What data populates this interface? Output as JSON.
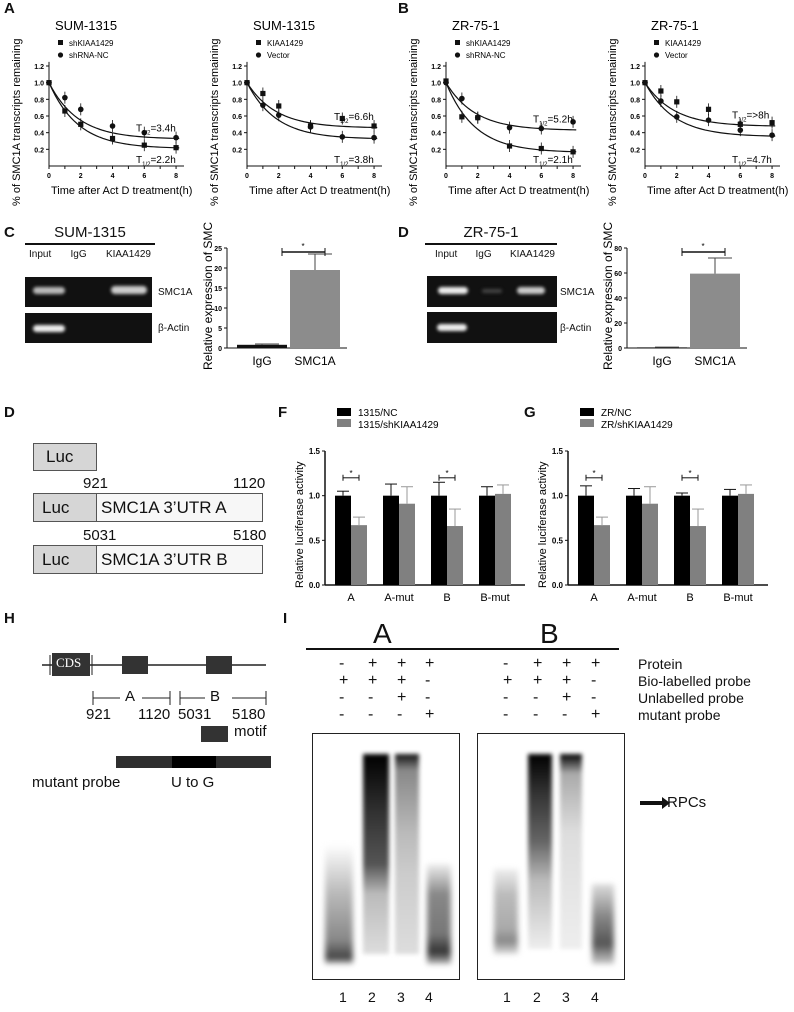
{
  "panels": {
    "A": "A",
    "B": "B",
    "C": "C",
    "D_rip": "D",
    "D_construct": "D",
    "F": "F",
    "G": "G",
    "H": "H",
    "I": "I"
  },
  "decay_common": {
    "ylabel": "% of SMC1A transcripts remaining",
    "xlabel": "Time after Act D treatment(h)",
    "xticks": [
      "0",
      "2",
      "4",
      "6",
      "8"
    ],
    "yticks": [
      "0.2",
      "0.4",
      "0.6",
      "0.8",
      "1.0",
      "1.2"
    ]
  },
  "rip": {
    "sum": {
      "title": "SUM-1315",
      "lanes": [
        "Input",
        "IgG",
        "KIAA1429"
      ],
      "rows": [
        "SMC1A",
        "β-Actin"
      ]
    },
    "zr": {
      "title": "ZR-75-1",
      "lanes": [
        "Input",
        "IgG",
        "KIAA1429"
      ],
      "rows": [
        "SMC1A",
        "β-Actin"
      ]
    },
    "bar_ylabel": "Relative expression of SMC1A",
    "sig": "*"
  },
  "construct": {
    "luc": "Luc",
    "a_start": "921",
    "a_end": "1120",
    "a_label": "SMC1A 3’UTR A",
    "b_start": "5031",
    "b_end": "5180",
    "b_label": "SMC1A 3’UTR B"
  },
  "luc_common": {
    "ylabel": "Relative luciferase activity",
    "yticks": [
      "0.0",
      "0.5",
      "1.0",
      "1.5"
    ],
    "categories": [
      "A",
      "A-mut",
      "B",
      "B-mut"
    ],
    "sig": "*"
  },
  "schematic": {
    "cds": "CDS",
    "a": "A",
    "b": "B",
    "pos": [
      "921",
      "1120",
      "5031",
      "5180"
    ],
    "motif": "motif",
    "mutant_probe": "mutant probe",
    "u_to_g": "U to G"
  },
  "emsa": {
    "groups": [
      "A",
      "B"
    ],
    "rows": [
      {
        "label": "Protein",
        "vals": [
          "-",
          "+",
          "+",
          "+"
        ]
      },
      {
        "label": "Bio-labelled probe",
        "vals": [
          "+",
          "+",
          "+",
          "-"
        ]
      },
      {
        "label": "Unlabelled probe",
        "vals": [
          "-",
          "-",
          "+",
          "-"
        ]
      },
      {
        "label": "mutant probe",
        "vals": [
          "-",
          "-",
          "-",
          "+"
        ]
      }
    ],
    "lanes": [
      "1",
      "2",
      "3",
      "4"
    ],
    "rpc_label": "RPCs"
  },
  "chart_data": [
    {
      "type": "line",
      "panel": "A-left",
      "title": "SUM-1315",
      "xlabel": "Time after Act D treatment(h)",
      "ylabel": "% of SMC1A transcripts remaining",
      "ylim": [
        0,
        1.2
      ],
      "xlim": [
        0,
        8
      ],
      "x": [
        0,
        1,
        2,
        4,
        6,
        8
      ],
      "series": [
        {
          "name": "shKIAA1429",
          "marker": "square",
          "values": [
            1.0,
            0.66,
            0.5,
            0.33,
            0.25,
            0.22
          ],
          "half_life": "T1/2=2.2h"
        },
        {
          "name": "shRNA-NC",
          "marker": "circle",
          "values": [
            1.0,
            0.82,
            0.68,
            0.48,
            0.4,
            0.34
          ],
          "half_life": "T1/2=3.4h"
        }
      ]
    },
    {
      "type": "line",
      "panel": "A-right",
      "title": "SUM-1315",
      "xlabel": "Time after Act D treatment(h)",
      "ylabel": "% of SMC1A transcripts remaining",
      "ylim": [
        0,
        1.2
      ],
      "xlim": [
        0,
        8
      ],
      "x": [
        0,
        1,
        2,
        4,
        6,
        8
      ],
      "series": [
        {
          "name": "KIAA1429",
          "marker": "square",
          "values": [
            1.0,
            0.87,
            0.72,
            0.48,
            0.57,
            0.48
          ],
          "half_life": "T1/2=6.6h"
        },
        {
          "name": "Vector",
          "marker": "circle",
          "values": [
            1.0,
            0.73,
            0.61,
            0.47,
            0.35,
            0.34
          ],
          "half_life": "T1/2=3.8h"
        }
      ]
    },
    {
      "type": "line",
      "panel": "B-left",
      "title": "ZR-75-1",
      "xlabel": "Time after Act D treatment(h)",
      "ylabel": "% of SMC1A transcripts remaining",
      "ylim": [
        0,
        1.2
      ],
      "xlim": [
        0,
        8
      ],
      "x": [
        0,
        1,
        2,
        4,
        6,
        8
      ],
      "series": [
        {
          "name": "shKIAA1429",
          "marker": "square",
          "values": [
            1.02,
            0.59,
            0.58,
            0.24,
            0.21,
            0.17
          ],
          "half_life": "T1/2=2.1h"
        },
        {
          "name": "shRNA-NC",
          "marker": "circle",
          "values": [
            1.0,
            0.81,
            0.58,
            0.46,
            0.45,
            0.53
          ],
          "half_life": "T1/2=5.2h"
        }
      ]
    },
    {
      "type": "line",
      "panel": "B-right",
      "title": "ZR-75-1",
      "xlabel": "Time after Act D treatment(h)",
      "ylabel": "% of SMC1A transcripts remaining",
      "ylim": [
        0,
        1.2
      ],
      "xlim": [
        0,
        8
      ],
      "x": [
        0,
        1,
        2,
        4,
        6,
        8
      ],
      "series": [
        {
          "name": "KIAA1429",
          "marker": "square",
          "values": [
            1.0,
            0.9,
            0.77,
            0.68,
            0.5,
            0.52
          ],
          "half_life": "T1/2=>8h"
        },
        {
          "name": "Vector",
          "marker": "circle",
          "values": [
            1.0,
            0.78,
            0.59,
            0.55,
            0.43,
            0.37
          ],
          "half_life": "T1/2=4.7h"
        }
      ]
    },
    {
      "type": "bar",
      "panel": "C",
      "title": "",
      "ylabel": "Relative expression of SMC1A",
      "categories": [
        "IgG",
        "SMC1A"
      ],
      "values": [
        0.8,
        19.5
      ],
      "errors": [
        0.2,
        4.0
      ],
      "ylim": [
        0,
        25
      ],
      "yticks": [
        0,
        5,
        10,
        15,
        20,
        25
      ]
    },
    {
      "type": "bar",
      "panel": "D",
      "title": "",
      "ylabel": "Relative expression of SMC1A",
      "categories": [
        "IgG",
        "SMC1A"
      ],
      "values": [
        0.5,
        59.5
      ],
      "errors": [
        0.2,
        12.5
      ],
      "ylim": [
        0,
        80
      ],
      "yticks": [
        0,
        20,
        40,
        60,
        80
      ]
    },
    {
      "type": "bar",
      "panel": "F",
      "ylabel": "Relative luciferase activity",
      "categories": [
        "A",
        "A-mut",
        "B",
        "B-mut"
      ],
      "ylim": [
        0,
        1.5
      ],
      "series": [
        {
          "name": "1315/NC",
          "color": "#000000",
          "values": [
            1.0,
            1.0,
            1.0,
            1.0
          ],
          "errors": [
            0.05,
            0.13,
            0.15,
            0.1
          ]
        },
        {
          "name": "1315/shKIAA1429",
          "color": "#808080",
          "values": [
            0.67,
            0.91,
            0.66,
            1.02
          ],
          "errors": [
            0.09,
            0.19,
            0.19,
            0.1
          ]
        }
      ]
    },
    {
      "type": "bar",
      "panel": "G",
      "ylabel": "Relative luciferase activity",
      "categories": [
        "A",
        "A-mut",
        "B",
        "B-mut"
      ],
      "ylim": [
        0,
        1.5
      ],
      "series": [
        {
          "name": "ZR/NC",
          "color": "#000000",
          "values": [
            1.0,
            1.0,
            1.0,
            1.0
          ],
          "errors": [
            0.11,
            0.08,
            0.03,
            0.07
          ]
        },
        {
          "name": "ZR/shKIAA1429",
          "color": "#808080",
          "values": [
            0.67,
            0.91,
            0.66,
            1.02
          ],
          "errors": [
            0.09,
            0.19,
            0.19,
            0.1
          ]
        }
      ]
    }
  ]
}
